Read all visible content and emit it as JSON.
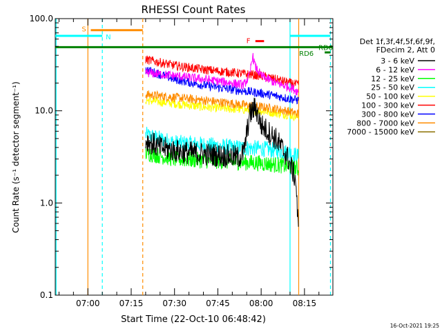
{
  "chart_data": {
    "type": "line",
    "title": "RHESSI Count Rates",
    "xlabel": "Start Time (22-Oct-10 06:48:42)",
    "ylabel": "Count Rate (s⁻¹ detector segment⁻¹)",
    "yscale": "log",
    "xlim": [
      "06:48:42",
      "08:24:50"
    ],
    "ylim": [
      0.1,
      100.0
    ],
    "x_ticks": [
      "07:00",
      "07:15",
      "07:30",
      "07:45",
      "08:00",
      "08:15"
    ],
    "y_ticks": [
      "0.1",
      "1.0",
      "10.0",
      "100.0"
    ],
    "timestamp": "16-Oct-2021 19:25",
    "legend": {
      "position": "right",
      "header": [
        "Det 1f,3f,4f,5f,6f,9f,",
        "FDecim 2, Att 0"
      ]
    },
    "series": [
      {
        "name": "3 - 6 keV",
        "color": "#000000",
        "x": [
          "07:20",
          "07:25",
          "07:30",
          "07:35",
          "07:40",
          "07:45",
          "07:50",
          "07:52",
          "07:54",
          "07:56",
          "07:58",
          "08:00",
          "08:05",
          "08:09",
          "08:12",
          "08:13"
        ],
        "y": [
          4.8,
          4.0,
          3.7,
          3.5,
          3.4,
          3.3,
          3.2,
          3.1,
          3.5,
          9.0,
          11.0,
          7.0,
          5.0,
          3.2,
          1.8,
          0.4
        ]
      },
      {
        "name": "6 - 12 keV",
        "color": "#ff00ff",
        "x": [
          "07:20",
          "07:30",
          "07:40",
          "07:50",
          "07:54",
          "07:56",
          "07:57",
          "07:58",
          "08:00",
          "08:05",
          "08:10",
          "08:13"
        ],
        "y": [
          26,
          24,
          22,
          20,
          19,
          24,
          40,
          30,
          24,
          20,
          18,
          16
        ]
      },
      {
        "name": "12 - 25 keV",
        "color": "#00ff00",
        "x": [
          "07:20",
          "07:30",
          "07:40",
          "07:50",
          "08:00",
          "08:05",
          "08:10",
          "08:13"
        ],
        "y": [
          3.5,
          3.0,
          2.9,
          2.8,
          2.7,
          2.6,
          2.5,
          2.3
        ]
      },
      {
        "name": "25 - 50 keV",
        "color": "#00ffff",
        "x": [
          "07:20",
          "07:30",
          "07:40",
          "07:50",
          "08:00",
          "08:05",
          "08:10",
          "08:13"
        ],
        "y": [
          5.5,
          4.5,
          4.3,
          4.0,
          3.9,
          3.7,
          3.5,
          3.2
        ]
      },
      {
        "name": "50 - 100 keV",
        "color": "#ffff00",
        "x": [
          "07:20",
          "07:30",
          "07:40",
          "07:50",
          "08:00",
          "08:05",
          "08:10",
          "08:13"
        ],
        "y": [
          13,
          12,
          11,
          10.5,
          10,
          9.5,
          9,
          8.5
        ]
      },
      {
        "name": "100 - 300 keV",
        "color": "#ff0000",
        "x": [
          "07:20",
          "07:30",
          "07:40",
          "07:50",
          "08:00",
          "08:05",
          "08:10",
          "08:13"
        ],
        "y": [
          36,
          31,
          28,
          26,
          24,
          22,
          20,
          19
        ]
      },
      {
        "name": "300 - 800 keV",
        "color": "#0000ff",
        "x": [
          "07:20",
          "07:30",
          "07:40",
          "07:50",
          "08:00",
          "08:05",
          "08:10",
          "08:13"
        ],
        "y": [
          28,
          22,
          19,
          17,
          15.5,
          14.5,
          13.5,
          13
        ]
      },
      {
        "name": "800 - 7000 keV",
        "color": "#ff8c00",
        "x": [
          "07:20",
          "07:30",
          "07:40",
          "07:50",
          "08:00",
          "08:05",
          "08:10",
          "08:13"
        ],
        "y": [
          15,
          14,
          13,
          12,
          11,
          10.5,
          9.8,
          9.2
        ]
      },
      {
        "name": "7000 - 15000 keV",
        "color": "#8b7000",
        "x": [],
        "y": []
      }
    ],
    "markers": {
      "s_label": "S",
      "n_label": "N",
      "f_label": "F",
      "rd6_label_a": "RD6",
      "rd6_label_b": "RD6",
      "s_bar": {
        "color": "#ff8c00",
        "x": [
          "07:01",
          "07:19"
        ],
        "y": 75
      },
      "n_bars": {
        "color": "#00ffff",
        "y": 65,
        "segments": [
          [
            "06:48:42",
            "07:05"
          ],
          [
            "08:10",
            "08:24"
          ]
        ]
      },
      "f_bar": {
        "color": "#ff0000",
        "x": [
          "07:58",
          "08:01"
        ],
        "y": 57
      },
      "rd6_line": {
        "color": "#008000",
        "x": [
          "06:48:42",
          "08:24:50"
        ],
        "y": 49
      },
      "rd6_small": {
        "color": "#008000",
        "x": [
          "08:22",
          "08:24"
        ],
        "y": 43
      },
      "vlines": [
        {
          "x": "06:49",
          "color": "#00ffff",
          "style": "solid"
        },
        {
          "x": "07:00",
          "color": "#ff8c00",
          "style": "solid"
        },
        {
          "x": "07:05",
          "color": "#00ffff",
          "style": "dashed"
        },
        {
          "x": "07:19",
          "color": "#ff8c00",
          "style": "dashed"
        },
        {
          "x": "08:10",
          "color": "#00ffff",
          "style": "solid"
        },
        {
          "x": "08:13",
          "color": "#ff8c00",
          "style": "solid"
        },
        {
          "x": "08:24",
          "color": "#00ffff",
          "style": "dashed"
        }
      ]
    }
  }
}
